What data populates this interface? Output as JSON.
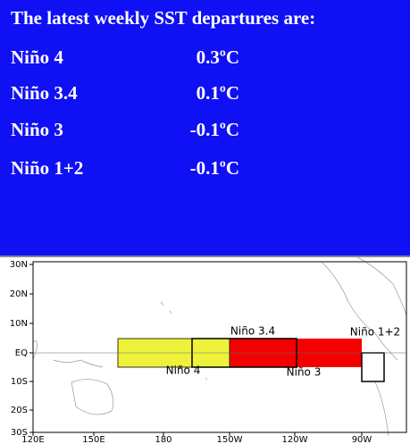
{
  "header": {
    "title": "The latest weekly SST departures are:"
  },
  "rows": [
    {
      "name": "Niño 4",
      "value": "0.3ºC"
    },
    {
      "name": "Niño 3.4",
      "value": "0.1ºC"
    },
    {
      "name": "Niño 3",
      "value": "-0.1ºC"
    },
    {
      "name": "Niño 1+2",
      "value": "-0.1ºC"
    }
  ],
  "map": {
    "y_labels": [
      "30N",
      "20N",
      "10N",
      "EQ",
      "10S",
      "20S",
      "30S"
    ],
    "x_labels": [
      "120E",
      "150E",
      "180",
      "150W",
      "120W",
      "90W"
    ],
    "boxes": [
      "Niño 3.4",
      "Niño 4",
      "Niño 3",
      "Niño 1+2"
    ]
  }
}
